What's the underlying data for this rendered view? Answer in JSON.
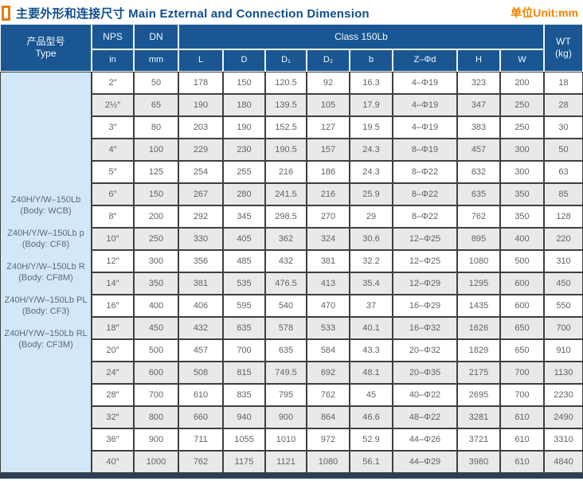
{
  "title": {
    "zh": "主要外形和连接尺寸",
    "en": "Main Ezternal and Connection Dimension",
    "full": "主要外形和连接尺寸 Main Ezternal and Connection Dimension",
    "unit": "单位Unit:mm"
  },
  "colors": {
    "header_blue": "#1a5792",
    "type_column_blue": "#d2e8f8",
    "row_alternate_gray": "#e9e9e9",
    "accent_orange": "#f08300",
    "title_blue": "#0f4f8e",
    "bottom_bar": "#2c4156"
  },
  "table": {
    "header": {
      "type_zh": "产品型号",
      "type_en": "Type",
      "nps": "NPS",
      "nps_sub": "in",
      "dn": "DN",
      "dn_sub": "mm",
      "class_label": "Class 150Lb",
      "class_cols": [
        "L",
        "D",
        "D₁",
        "D₂",
        "b",
        "Z–Φd",
        "H",
        "W"
      ],
      "wt_line1": "WT",
      "wt_line2": "(kg)"
    },
    "types": [
      {
        "model": "Z40H/Y/W–150Lb",
        "body": "(Body: WCB)"
      },
      {
        "model": "Z40H/Y/W–150Lb p",
        "body": "(Body: CF8)"
      },
      {
        "model": "Z40H/Y/W–150Lb R",
        "body": "(Body: CF8M)"
      },
      {
        "model": "Z40H/Y/W–150Lb PL",
        "body": "(Body: CF3)"
      },
      {
        "model": "Z40H/Y/W–150Lb RL",
        "body": "(Body: CF3M)"
      }
    ],
    "rows": [
      [
        "2″",
        "50",
        "178",
        "150",
        "120.5",
        "92",
        "16.3",
        "4–Φ19",
        "323",
        "200",
        "18"
      ],
      [
        "2½″",
        "65",
        "190",
        "180",
        "139.5",
        "105",
        "17.9",
        "4–Φ19",
        "347",
        "250",
        "28"
      ],
      [
        "3″",
        "80",
        "203",
        "190",
        "152.5",
        "127",
        "19.5",
        "4–Φ19",
        "383",
        "250",
        "30"
      ],
      [
        "4″",
        "100",
        "229",
        "230",
        "190.5",
        "157",
        "24.3",
        "8–Φ19",
        "457",
        "300",
        "50"
      ],
      [
        "5″",
        "125",
        "254",
        "255",
        "216",
        "186",
        "24.3",
        "8–Φ22",
        "632",
        "300",
        "63"
      ],
      [
        "6″",
        "150",
        "267",
        "280",
        "241.5",
        "216",
        "25.9",
        "8–Φ22",
        "635",
        "350",
        "85"
      ],
      [
        "8″",
        "200",
        "292",
        "345",
        "298.5",
        "270",
        "29",
        "8–Φ22",
        "762",
        "350",
        "128"
      ],
      [
        "10″",
        "250",
        "330",
        "405",
        "362",
        "324",
        "30.6",
        "12–Φ25",
        "895",
        "400",
        "220"
      ],
      [
        "12″",
        "300",
        "356",
        "485",
        "432",
        "381",
        "32.2",
        "12–Φ25",
        "1080",
        "500",
        "310"
      ],
      [
        "14″",
        "350",
        "381",
        "535",
        "476.5",
        "413",
        "35.4",
        "12–Φ29",
        "1295",
        "600",
        "450"
      ],
      [
        "16″",
        "400",
        "406",
        "595",
        "540",
        "470",
        "37",
        "16–Φ29",
        "1435",
        "600",
        "550"
      ],
      [
        "18″",
        "450",
        "432",
        "635",
        "578",
        "533",
        "40.1",
        "16–Φ32",
        "1626",
        "650",
        "700"
      ],
      [
        "20″",
        "500",
        "457",
        "700",
        "635",
        "584",
        "43.3",
        "20–Φ32",
        "1829",
        "650",
        "910"
      ],
      [
        "24″",
        "600",
        "508",
        "815",
        "749.5",
        "692",
        "48.1",
        "20–Φ35",
        "2175",
        "700",
        "1130"
      ],
      [
        "28″",
        "700",
        "610",
        "835",
        "795",
        "762",
        "45",
        "40–Φ22",
        "2695",
        "700",
        "2230"
      ],
      [
        "32″",
        "800",
        "660",
        "940",
        "900",
        "864",
        "46.6",
        "48–Φ22",
        "3281",
        "610",
        "2490"
      ],
      [
        "36″",
        "900",
        "711",
        "1055",
        "1010",
        "972",
        "52.9",
        "44–Φ26",
        "3721",
        "610",
        "3310"
      ],
      [
        "40″",
        "1000",
        "762",
        "1175",
        "1121",
        "1080",
        "56.1",
        "44–Φ29",
        "3980",
        "610",
        "4840"
      ]
    ]
  }
}
